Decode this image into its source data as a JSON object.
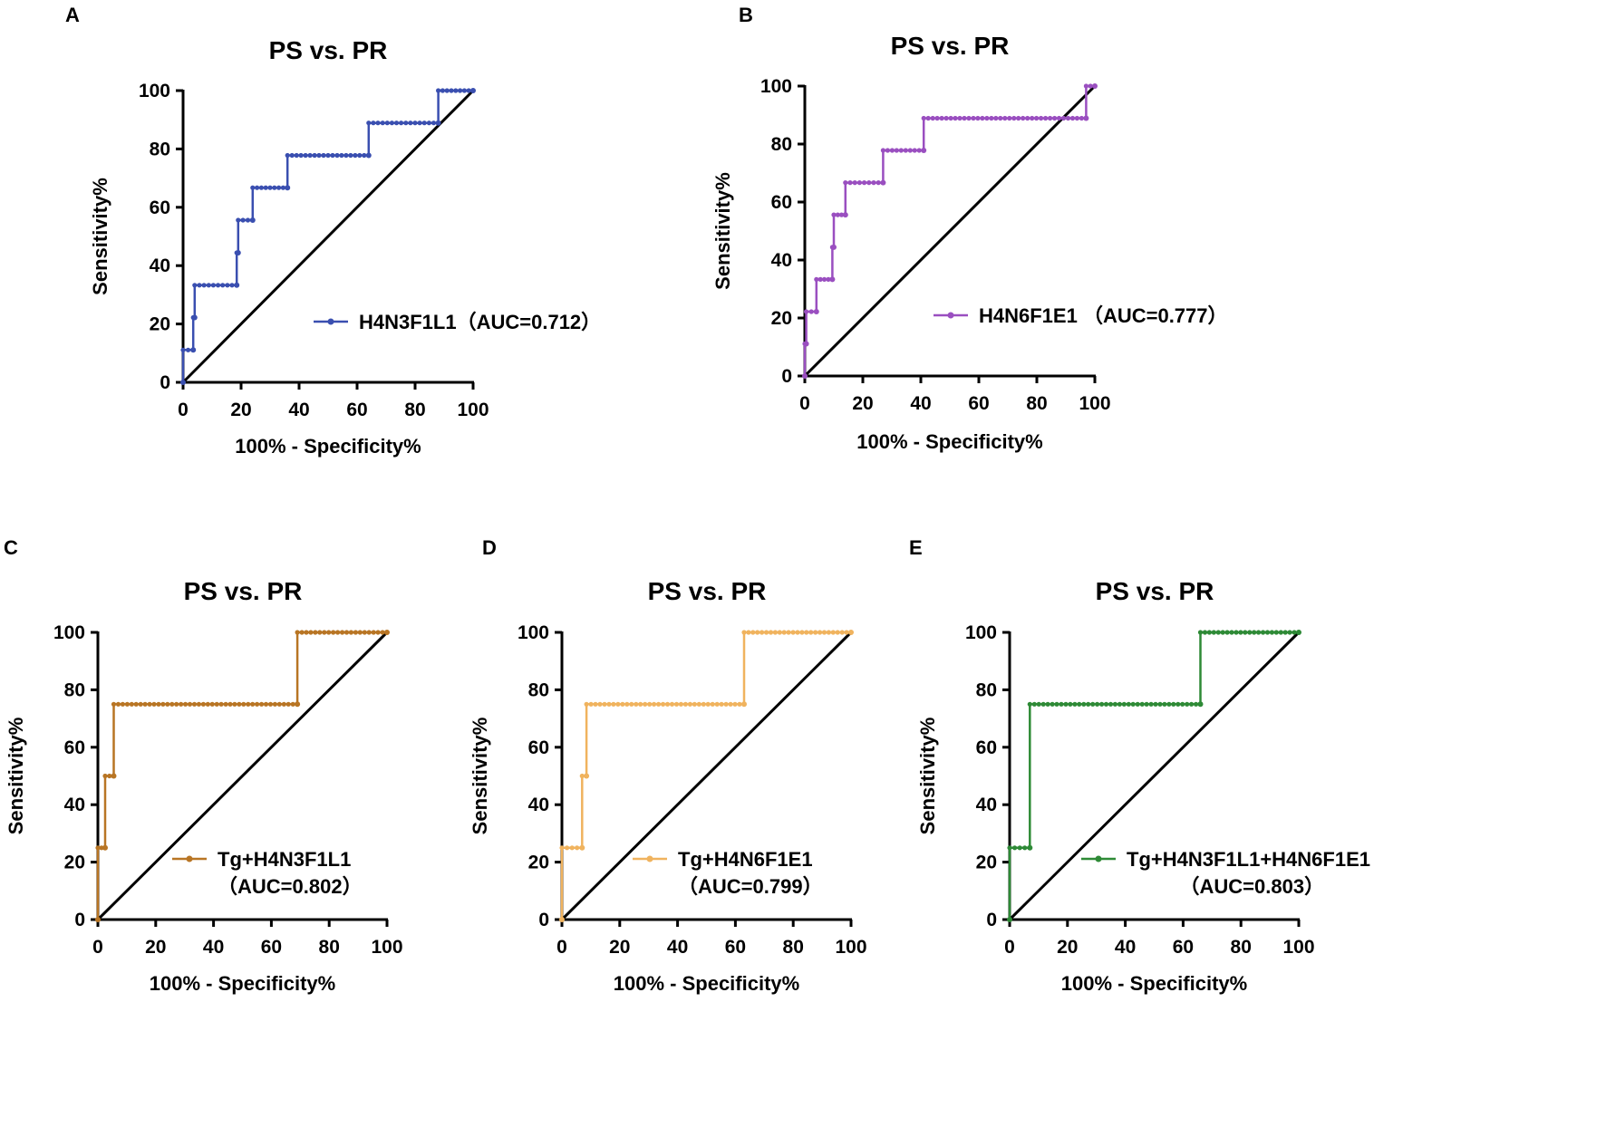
{
  "figure": {
    "panels": [
      "A",
      "B",
      "C",
      "D",
      "E"
    ]
  },
  "chart_data": [
    {
      "panel": "A",
      "type": "line",
      "title": "PS vs. PR",
      "xlabel": "100% - Specificity%",
      "ylabel": "Sensitivity%",
      "xlim": [
        0,
        100
      ],
      "ylim": [
        0,
        100
      ],
      "xticks": [
        0,
        20,
        40,
        60,
        80,
        100
      ],
      "yticks": [
        0,
        20,
        40,
        60,
        80,
        100
      ],
      "legend_label": "H4N3F1L1（AUC=0.712）",
      "legend_line2": "",
      "color": "#3a4fb0",
      "series": [
        {
          "name": "H4N3F1L1",
          "x": [
            0,
            0,
            3.5,
            3.5,
            4,
            4,
            18.5,
            18.5,
            19,
            19,
            24,
            24,
            36,
            36,
            64,
            64,
            88,
            88,
            100
          ],
          "y": [
            0,
            11.1,
            11.1,
            22.2,
            22.2,
            33.3,
            33.3,
            44.4,
            44.4,
            55.6,
            55.6,
            66.7,
            66.7,
            77.8,
            77.8,
            88.9,
            88.9,
            100,
            100
          ]
        }
      ]
    },
    {
      "panel": "B",
      "type": "line",
      "title": "PS vs. PR",
      "xlabel": "100% - Specificity%",
      "ylabel": "Sensitivity%",
      "xlim": [
        0,
        100
      ],
      "ylim": [
        0,
        100
      ],
      "xticks": [
        0,
        20,
        40,
        60,
        80,
        100
      ],
      "yticks": [
        0,
        20,
        40,
        60,
        80,
        100
      ],
      "legend_label": "H4N6F1E1 （AUC=0.777）",
      "legend_line2": "",
      "color": "#9a4fc0",
      "series": [
        {
          "name": "H4N6F1E1",
          "x": [
            0,
            0,
            0.5,
            0.5,
            4,
            4,
            9.5,
            9.5,
            10,
            10,
            14,
            14,
            27,
            27,
            41,
            41,
            97,
            97,
            100
          ],
          "y": [
            0,
            11.1,
            11.1,
            22.2,
            22.2,
            33.3,
            33.3,
            44.4,
            44.4,
            55.6,
            55.6,
            66.7,
            66.7,
            77.8,
            77.8,
            88.9,
            88.9,
            100,
            100
          ]
        }
      ]
    },
    {
      "panel": "C",
      "type": "line",
      "title": "PS vs. PR",
      "xlabel": "100% - Specificity%",
      "ylabel": "Sensitivity%",
      "xlim": [
        0,
        100
      ],
      "ylim": [
        0,
        100
      ],
      "xticks": [
        0,
        20,
        40,
        60,
        80,
        100
      ],
      "yticks": [
        0,
        20,
        40,
        60,
        80,
        100
      ],
      "legend_label": "Tg+H4N3F1L1",
      "legend_line2": "（AUC=0.802）",
      "color": "#b87524",
      "series": [
        {
          "name": "Tg+H4N3F1L1",
          "x": [
            0,
            0,
            2.5,
            2.5,
            5.5,
            5.5,
            69,
            69,
            100
          ],
          "y": [
            0,
            25,
            25,
            50,
            50,
            75,
            75,
            100,
            100
          ]
        }
      ]
    },
    {
      "panel": "D",
      "type": "line",
      "title": "PS vs. PR",
      "xlabel": "100% - Specificity%",
      "ylabel": "Sensitivity%",
      "xlim": [
        0,
        100
      ],
      "ylim": [
        0,
        100
      ],
      "xticks": [
        0,
        20,
        40,
        60,
        80,
        100
      ],
      "yticks": [
        0,
        20,
        40,
        60,
        80,
        100
      ],
      "legend_label": "Tg+H4N6F1E1",
      "legend_line2": "（AUC=0.799）",
      "color": "#f0b35e",
      "series": [
        {
          "name": "Tg+H4N6F1E1",
          "x": [
            0,
            0,
            7,
            7,
            8.5,
            8.5,
            63,
            63,
            100
          ],
          "y": [
            0,
            25,
            25,
            50,
            50,
            75,
            75,
            100,
            100
          ]
        }
      ]
    },
    {
      "panel": "E",
      "type": "line",
      "title": "PS vs. PR",
      "xlabel": "100% - Specificity%",
      "ylabel": "Sensitivity%",
      "xlim": [
        0,
        100
      ],
      "ylim": [
        0,
        100
      ],
      "xticks": [
        0,
        20,
        40,
        60,
        80,
        100
      ],
      "yticks": [
        0,
        20,
        40,
        60,
        80,
        100
      ],
      "legend_label": "Tg+H4N3F1L1+H4N6F1E1",
      "legend_line2": "（AUC=0.803）",
      "color": "#2e8a36",
      "series": [
        {
          "name": "Tg+H4N3F1L1+H4N6F1E1",
          "x": [
            0,
            0,
            7,
            7,
            66,
            66,
            100
          ],
          "y": [
            0,
            25,
            25,
            75,
            75,
            100,
            100
          ]
        }
      ]
    }
  ]
}
